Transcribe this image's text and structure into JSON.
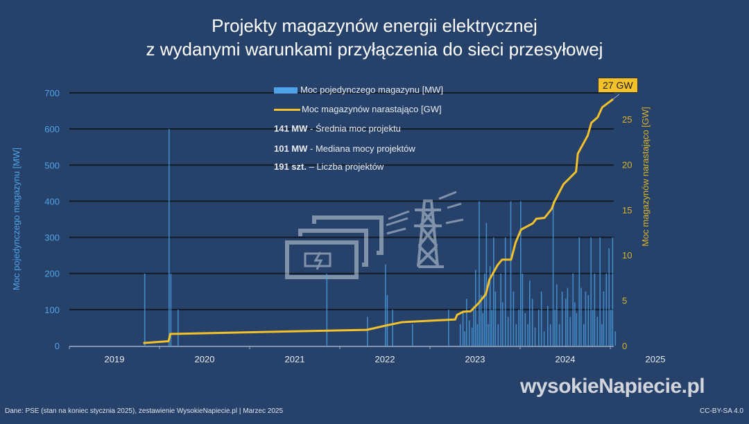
{
  "chart_data": {
    "type": "bar+line",
    "title": "Projekty magazynów energii elektrycznej",
    "subtitle": "z wydanymi warunkami przyłączenia do sieci przesyłowej",
    "ylabel": "Moc pojedynczego magazynu [MW]",
    "y2label": "Moc magazynów narastająco [GW]",
    "ylim": [
      0,
      700
    ],
    "y2lim": [
      0,
      27.9
    ],
    "xlim": [
      2018.5,
      2025
    ],
    "yticks": [
      0,
      100,
      200,
      300,
      400,
      500,
      600,
      700
    ],
    "y2ticks": [
      0,
      5,
      10,
      15,
      20,
      25
    ],
    "xticks": [
      "2019",
      "2020",
      "2021",
      "2022",
      "2023",
      "2024",
      "2025"
    ],
    "grid": true,
    "legend": [
      {
        "label": "Moc pojedynczego magazynu [MW]",
        "color": "#4ea3e8"
      },
      {
        "label": "Moc magazynów narastająco [GW]",
        "color": "#f3c12a"
      }
    ],
    "stats": [
      {
        "value": "141 MW",
        "text": " - Średnia moc projektu"
      },
      {
        "value": "101 MW",
        "text": " - Mediana mocy projektów"
      },
      {
        "value": "191 szt.",
        "text": " – Liczba projektów"
      }
    ],
    "end_label": "27 GW",
    "bars": [
      [
        2019.33,
        200
      ],
      [
        2019.6,
        600
      ],
      [
        2019.62,
        200
      ],
      [
        2019.7,
        100
      ],
      [
        2021.35,
        200
      ],
      [
        2021.8,
        80
      ],
      [
        2022.0,
        225
      ],
      [
        2022.02,
        140
      ],
      [
        2022.08,
        100
      ],
      [
        2022.3,
        60
      ],
      [
        2022.7,
        100
      ],
      [
        2022.83,
        60
      ],
      [
        2022.86,
        95
      ],
      [
        2022.88,
        40
      ],
      [
        2022.9,
        130
      ],
      [
        2022.93,
        70
      ],
      [
        2022.96,
        50
      ],
      [
        2022.98,
        110
      ],
      [
        2023.0,
        210
      ],
      [
        2023.02,
        60
      ],
      [
        2023.04,
        400
      ],
      [
        2023.06,
        140
      ],
      [
        2023.08,
        90
      ],
      [
        2023.1,
        200
      ],
      [
        2023.12,
        340
      ],
      [
        2023.14,
        60
      ],
      [
        2023.16,
        220
      ],
      [
        2023.18,
        100
      ],
      [
        2023.2,
        300
      ],
      [
        2023.22,
        150
      ],
      [
        2023.25,
        60
      ],
      [
        2023.28,
        200
      ],
      [
        2023.3,
        120
      ],
      [
        2023.33,
        300
      ],
      [
        2023.36,
        80
      ],
      [
        2023.39,
        400
      ],
      [
        2023.42,
        150
      ],
      [
        2023.45,
        60
      ],
      [
        2023.48,
        100
      ],
      [
        2023.5,
        400
      ],
      [
        2023.52,
        200
      ],
      [
        2023.55,
        90
      ],
      [
        2023.58,
        60
      ],
      [
        2023.6,
        180
      ],
      [
        2023.63,
        130
      ],
      [
        2023.66,
        50
      ],
      [
        2023.7,
        100
      ],
      [
        2023.73,
        150
      ],
      [
        2023.76,
        40
      ],
      [
        2023.8,
        110
      ],
      [
        2023.83,
        60
      ],
      [
        2023.86,
        400
      ],
      [
        2023.88,
        100
      ],
      [
        2023.9,
        170
      ],
      [
        2023.93,
        60
      ],
      [
        2023.96,
        150
      ],
      [
        2024.0,
        130
      ],
      [
        2024.02,
        160
      ],
      [
        2024.05,
        80
      ],
      [
        2024.08,
        200
      ],
      [
        2024.1,
        120
      ],
      [
        2024.12,
        90
      ],
      [
        2024.15,
        300
      ],
      [
        2024.17,
        160
      ],
      [
        2024.2,
        60
      ],
      [
        2024.22,
        150
      ],
      [
        2024.25,
        140
      ],
      [
        2024.28,
        300
      ],
      [
        2024.3,
        100
      ],
      [
        2024.32,
        200
      ],
      [
        2024.35,
        80
      ],
      [
        2024.38,
        300
      ],
      [
        2024.4,
        60
      ],
      [
        2024.42,
        150
      ],
      [
        2024.45,
        200
      ],
      [
        2024.48,
        270
      ],
      [
        2024.5,
        100
      ],
      [
        2024.52,
        300
      ],
      [
        2024.55,
        40
      ]
    ],
    "cumulative": [
      [
        2019.32,
        0.3
      ],
      [
        2019.6,
        0.5
      ],
      [
        2019.62,
        1.3
      ],
      [
        2021.8,
        1.75
      ],
      [
        2022.0,
        2.2
      ],
      [
        2022.19,
        2.6
      ],
      [
        2022.78,
        2.9
      ],
      [
        2022.8,
        3.4
      ],
      [
        2022.87,
        3.75
      ],
      [
        2022.95,
        3.8
      ],
      [
        2023.04,
        4.7
      ],
      [
        2023.12,
        5.7
      ],
      [
        2023.16,
        7.3
      ],
      [
        2023.25,
        8.9
      ],
      [
        2023.3,
        9.5
      ],
      [
        2023.4,
        9.5
      ],
      [
        2023.45,
        11.4
      ],
      [
        2023.51,
        12.8
      ],
      [
        2023.64,
        13.5
      ],
      [
        2023.68,
        14.0
      ],
      [
        2023.77,
        14.1
      ],
      [
        2023.85,
        15.1
      ],
      [
        2023.88,
        15.9
      ],
      [
        2023.98,
        17.8
      ],
      [
        2024.12,
        19.2
      ],
      [
        2024.14,
        21.2
      ],
      [
        2024.25,
        23.2
      ],
      [
        2024.29,
        24.6
      ],
      [
        2024.36,
        25.2
      ],
      [
        2024.41,
        26.3
      ],
      [
        2024.53,
        27.2
      ]
    ]
  },
  "footer": {
    "source": "Dane: PSE (stan na koniec stycznia 2025), zestawienie WysokieNapiecie.pl   |   Marzec 2025",
    "license": "CC-BY-SA 4.0",
    "logo": "wysokieNapiecie.pl"
  },
  "colors": {
    "background": "#27426a",
    "bar": "#4ea3e8",
    "line": "#f3c12a",
    "right_axis": "#d9b42a",
    "left_axis": "#4ea3e8"
  }
}
